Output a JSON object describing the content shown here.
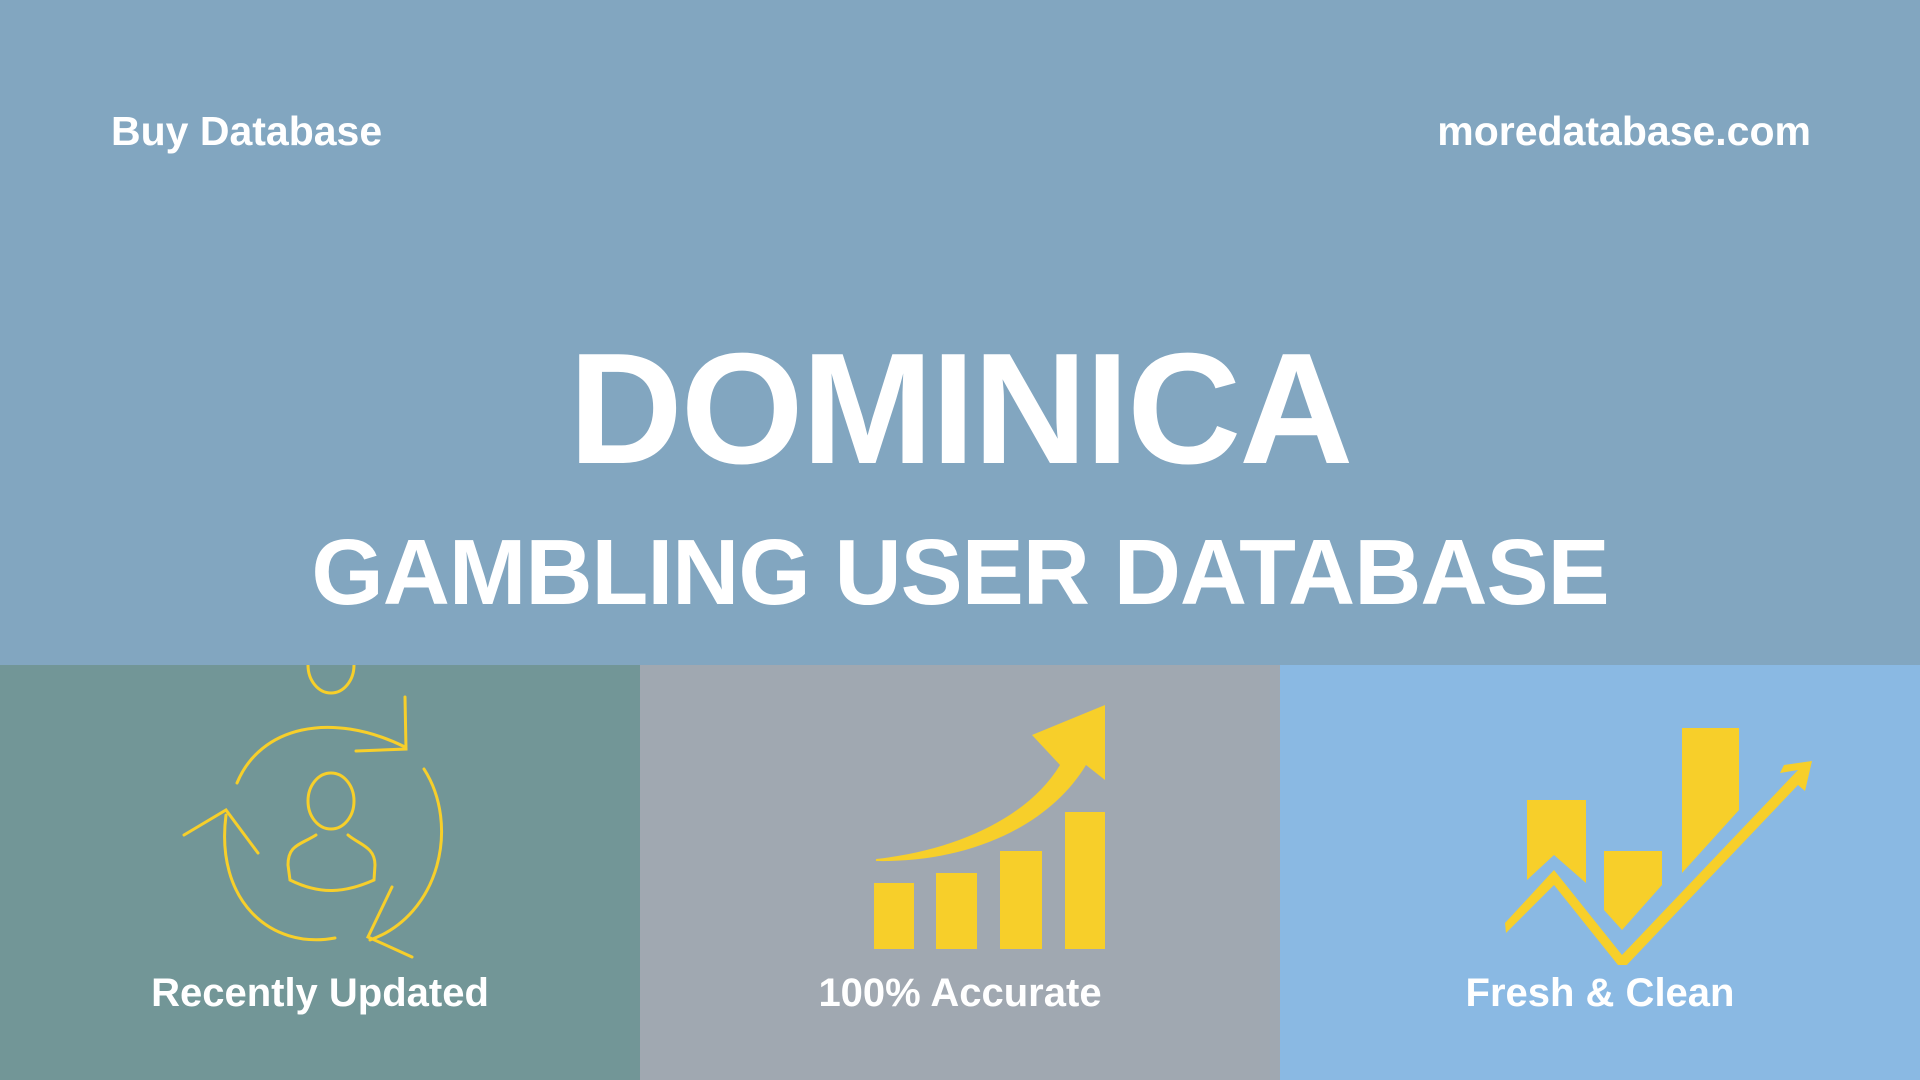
{
  "header": {
    "left_text": "Buy Database",
    "right_text": "moredatabase.com"
  },
  "hero": {
    "title": "DOMINICA",
    "subtitle": "GAMBLING USER DATABASE"
  },
  "features": [
    {
      "label": "Recently Updated",
      "icon": "refresh-user-icon",
      "color": "#729697"
    },
    {
      "label": "100% Accurate",
      "icon": "growth-bar-chart-icon",
      "color": "#a0a8b1"
    },
    {
      "label": "Fresh & Clean",
      "icon": "trend-bar-chart-icon",
      "color": "#8ab9e3"
    }
  ],
  "colors": {
    "background": "#82a6c0",
    "icon": "#f7cf2a",
    "text": "#ffffff"
  }
}
